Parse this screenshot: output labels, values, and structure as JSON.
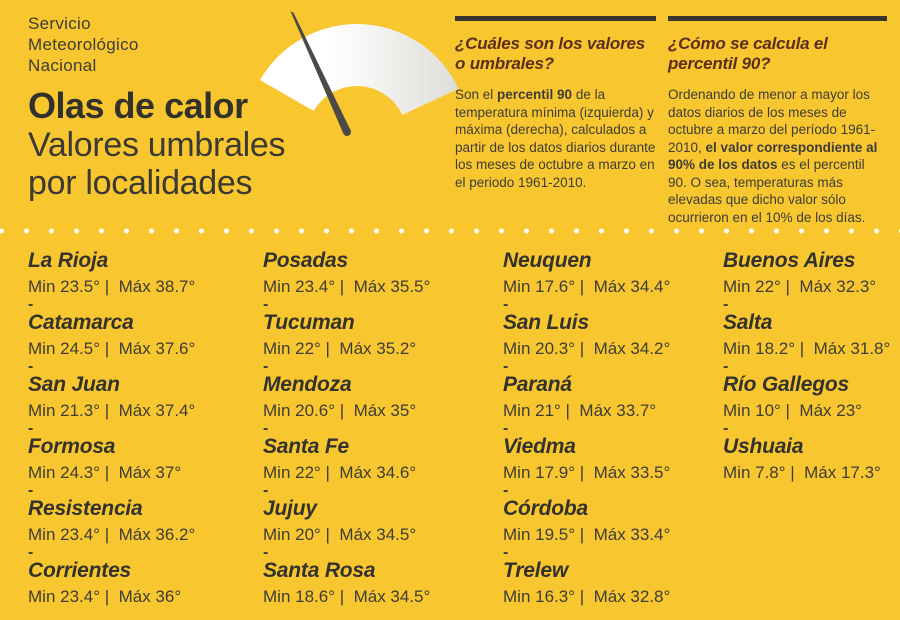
{
  "colors": {
    "background": "#F8C72F",
    "text_dark": "#3E3C37",
    "title_dark": "#33312C",
    "heading_red": "#5B2F1B",
    "rule_dark": "#38362E",
    "gauge_fan_light": "#FFFFFF",
    "gauge_fan_shade": "#DEDDD8",
    "needle": "#4B4A46",
    "dots": "#FFFBEE"
  },
  "brand": {
    "org_line1": "Servicio",
    "org_line2": "Meteorológico",
    "org_line3": "Nacional"
  },
  "title": {
    "heading": "Olas de calor",
    "subtitle_line1": "Valores umbrales",
    "subtitle_line2": "por localidades"
  },
  "info_blocks": [
    {
      "heading": "¿Cuáles son los valores o umbrales?",
      "body": [
        {
          "text": "Son el ",
          "bold": false
        },
        {
          "text": "percentil 90",
          "bold": true
        },
        {
          "text": " de la temperatura mínima (izquierda) y máxima (derecha), calculados a partir de los datos diarios durante los meses de octubre a marzo en el periodo 1961-2010.",
          "bold": false
        }
      ]
    },
    {
      "heading": "¿Cómo se calcula el percentil 90?",
      "body": [
        {
          "text": "Ordenando de menor a mayor los datos diarios de los meses de octubre a marzo del período 1961-2010, ",
          "bold": false
        },
        {
          "text": "el valor correspondiente al 90% de los datos",
          "bold": true
        },
        {
          "text": " es el percentil 90. O sea, temperaturas más elevadas que dicho valor sólo ocurrieron en el 10% de los días.",
          "bold": false
        }
      ]
    }
  ],
  "labels": {
    "min": "Min",
    "max": "Máx",
    "separator": "|",
    "dash": "-"
  },
  "localities": {
    "columns": [
      [
        {
          "name": "La Rioja",
          "min": "23.5°",
          "max": "38.7°"
        },
        {
          "name": "Catamarca",
          "min": "24.5°",
          "max": "37.6°"
        },
        {
          "name": "San Juan",
          "min": "21.3°",
          "max": "37.4°"
        },
        {
          "name": "Formosa",
          "min": "24.3°",
          "max": "37°"
        },
        {
          "name": "Resistencia",
          "min": "23.4°",
          "max": "36.2°"
        },
        {
          "name": "Corrientes",
          "min": "23.4°",
          "max": "36°"
        }
      ],
      [
        {
          "name": "Posadas",
          "min": "23.4°",
          "max": "35.5°"
        },
        {
          "name": "Tucuman",
          "min": "22°",
          "max": "35.2°"
        },
        {
          "name": "Mendoza",
          "min": "20.6°",
          "max": "35°"
        },
        {
          "name": "Santa Fe",
          "min": "22°",
          "max": "34.6°"
        },
        {
          "name": "Jujuy",
          "min": "20°",
          "max": "34.5°"
        },
        {
          "name": "Santa Rosa",
          "min": "18.6°",
          "max": "34.5°"
        }
      ],
      [
        {
          "name": "Neuquen",
          "min": "17.6°",
          "max": "34.4°"
        },
        {
          "name": "San Luis",
          "min": "20.3°",
          "max": "34.2°"
        },
        {
          "name": "Paraná",
          "min": "21°",
          "max": "33.7°"
        },
        {
          "name": "Viedma",
          "min": "17.9°",
          "max": "33.5°"
        },
        {
          "name": "Córdoba",
          "min": "19.5°",
          "max": "33.4°"
        },
        {
          "name": "Trelew",
          "min": "16.3°",
          "max": "32.8°"
        }
      ],
      [
        {
          "name": "Buenos Aires",
          "min": "22°",
          "max": "32.3°"
        },
        {
          "name": "Salta",
          "min": "18.2°",
          "max": "31.8°"
        },
        {
          "name": "Río Gallegos",
          "min": "10°",
          "max": "23°"
        },
        {
          "name": "Ushuaia",
          "min": "7.8°",
          "max": "17.3°"
        }
      ]
    ]
  }
}
